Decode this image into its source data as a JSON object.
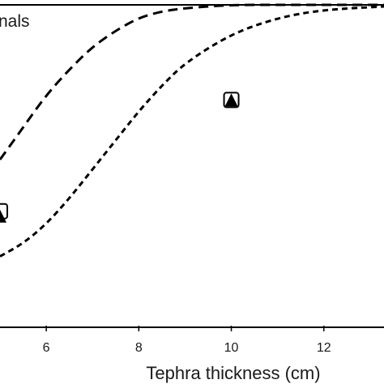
{
  "chart_data": {
    "type": "line",
    "xlabel": "Tephra thickness (cm)",
    "ylabel": "",
    "xlim": [
      5,
      13.3
    ],
    "ylim": [
      0,
      1.0
    ],
    "x_ticks": [
      6,
      8,
      10,
      12
    ],
    "x_tick_labels": [
      "6",
      "8",
      "10",
      "12"
    ],
    "legend": {
      "visible_text": "nals",
      "placement": "top-left"
    },
    "grid": false,
    "series": [
      {
        "style": "dashed",
        "points": [
          [
            5,
            0.52
          ],
          [
            5.5,
            0.62
          ],
          [
            6,
            0.72
          ],
          [
            6.5,
            0.8
          ],
          [
            7,
            0.87
          ],
          [
            7.5,
            0.92
          ],
          [
            8,
            0.96
          ],
          [
            8.5,
            0.98
          ],
          [
            9,
            0.99
          ],
          [
            10,
            1.0
          ],
          [
            11,
            1.0
          ],
          [
            12,
            1.0
          ],
          [
            13.3,
            1.0
          ]
        ]
      },
      {
        "style": "short-dashed",
        "points": [
          [
            5,
            0.22
          ],
          [
            5.5,
            0.26
          ],
          [
            6,
            0.32
          ],
          [
            6.5,
            0.4
          ],
          [
            7,
            0.49
          ],
          [
            7.5,
            0.58
          ],
          [
            8,
            0.67
          ],
          [
            8.5,
            0.75
          ],
          [
            9,
            0.82
          ],
          [
            10,
            0.91
          ],
          [
            11,
            0.96
          ],
          [
            12,
            0.985
          ],
          [
            13.3,
            0.995
          ]
        ]
      }
    ],
    "markers": [
      {
        "x": 10,
        "y": 0.705,
        "symbol": "filled-triangle-in-square",
        "color": "#000000"
      },
      {
        "x": 5.0,
        "y": 0.36,
        "symbol": "square-with-triangle",
        "color": "#000000"
      }
    ]
  }
}
